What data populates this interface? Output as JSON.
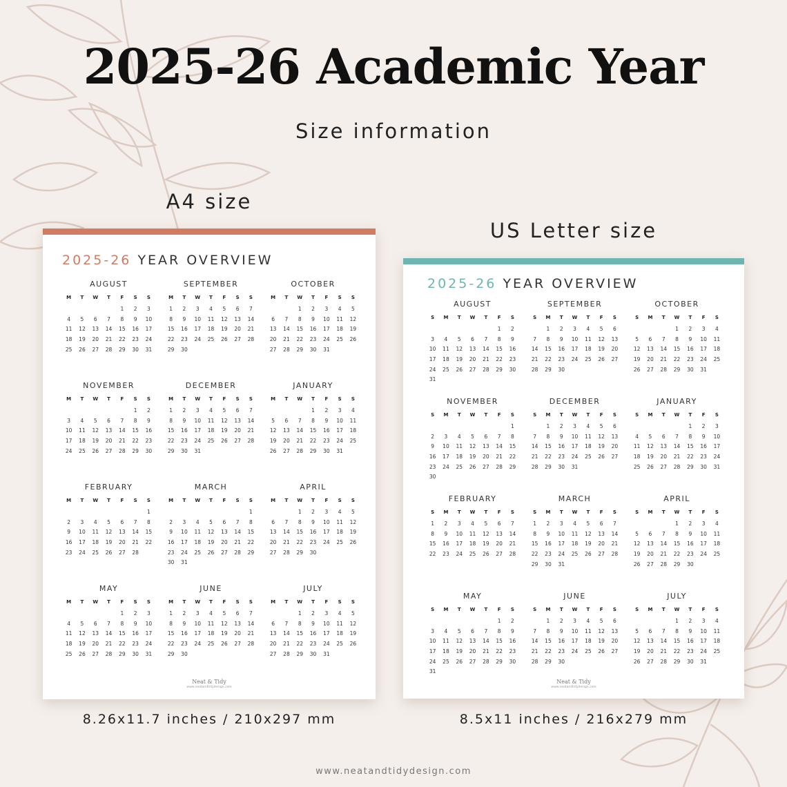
{
  "header": {
    "title": "2025-26 Academic Year",
    "subtitle": "Size information"
  },
  "colors": {
    "a4_accent": "#d17c60",
    "us_accent": "#6bb6b0",
    "background": "#f5efeb"
  },
  "a4": {
    "label": "A4 size",
    "dimensions": "8.26x11.7 inches  /  210x297 mm",
    "title_year": "2025-26",
    "title_rest": "YEAR OVERVIEW",
    "brand_name": "Neat & Tidy",
    "brand_url": "www.neatandtidydesign.com",
    "weekdays": [
      "M",
      "T",
      "W",
      "T",
      "F",
      "S",
      "S"
    ],
    "months": [
      {
        "name": "AUGUST",
        "offset": 4,
        "days": 31
      },
      {
        "name": "SEPTEMBER",
        "offset": 0,
        "days": 30
      },
      {
        "name": "OCTOBER",
        "offset": 2,
        "days": 31
      },
      {
        "name": "NOVEMBER",
        "offset": 5,
        "days": 30
      },
      {
        "name": "DECEMBER",
        "offset": 0,
        "days": 31
      },
      {
        "name": "JANUARY",
        "offset": 3,
        "days": 31
      },
      {
        "name": "FEBRUARY",
        "offset": 6,
        "days": 28
      },
      {
        "name": "MARCH",
        "offset": 6,
        "days": 31
      },
      {
        "name": "APRIL",
        "offset": 2,
        "days": 30
      },
      {
        "name": "MAY",
        "offset": 4,
        "days": 31
      },
      {
        "name": "JUNE",
        "offset": 0,
        "days": 30
      },
      {
        "name": "JULY",
        "offset": 2,
        "days": 31
      }
    ]
  },
  "us": {
    "label": "US Letter size",
    "dimensions": "8.5x11 inches  /  216x279 mm",
    "title_year": "2025-26",
    "title_rest": "YEAR OVERVIEW",
    "brand_name": "Neat & Tidy",
    "brand_url": "www.neatandtidydesign.com",
    "weekdays": [
      "S",
      "M",
      "T",
      "W",
      "T",
      "F",
      "S"
    ],
    "months": [
      {
        "name": "AUGUST",
        "offset": 5,
        "days": 31
      },
      {
        "name": "SEPTEMBER",
        "offset": 1,
        "days": 30
      },
      {
        "name": "OCTOBER",
        "offset": 3,
        "days": 31
      },
      {
        "name": "NOVEMBER",
        "offset": 6,
        "days": 30
      },
      {
        "name": "DECEMBER",
        "offset": 1,
        "days": 31
      },
      {
        "name": "JANUARY",
        "offset": 4,
        "days": 31
      },
      {
        "name": "FEBRUARY",
        "offset": 0,
        "days": 28
      },
      {
        "name": "MARCH",
        "offset": 0,
        "days": 31
      },
      {
        "name": "APRIL",
        "offset": 3,
        "days": 30
      },
      {
        "name": "MAY",
        "offset": 5,
        "days": 31
      },
      {
        "name": "JUNE",
        "offset": 1,
        "days": 30
      },
      {
        "name": "JULY",
        "offset": 3,
        "days": 31
      }
    ]
  },
  "footer": {
    "url": "www.neatandtidydesign.com"
  }
}
